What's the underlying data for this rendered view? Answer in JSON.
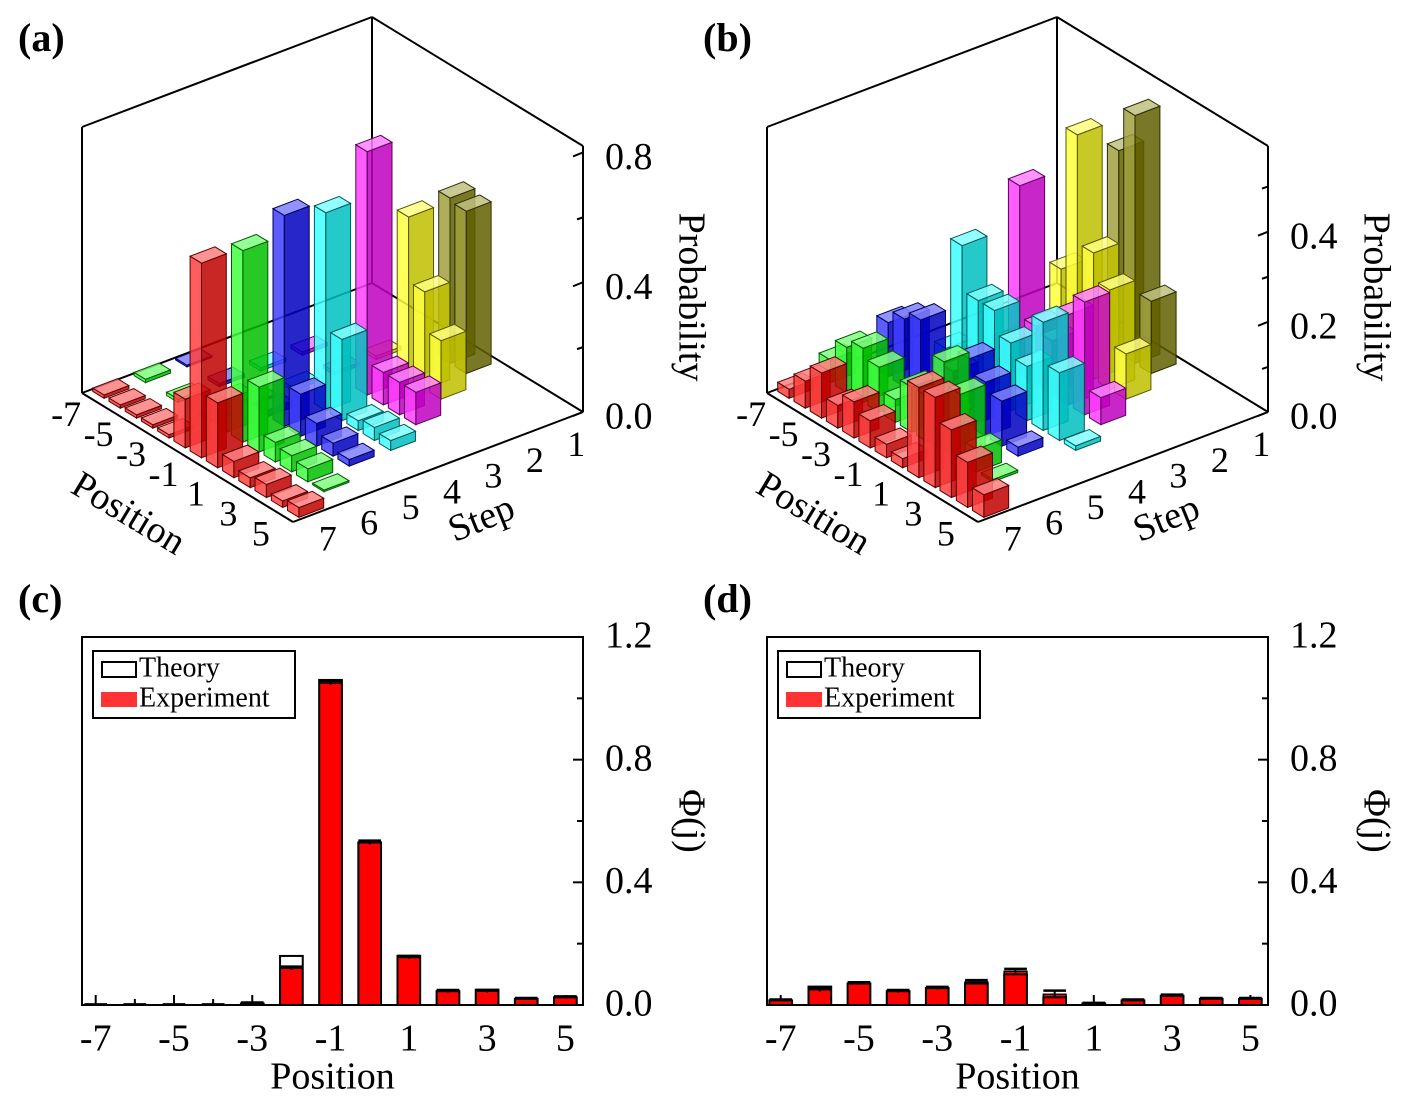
{
  "chart_data": [
    {
      "type": "bar3d",
      "panel_label": "(a)",
      "xlabel": "Position",
      "ylabel": "Step",
      "zlabel": "Probability",
      "xlim": [
        -7.5,
        5.5
      ],
      "xticks": [
        -7,
        -5,
        -3,
        -1,
        1,
        3,
        5
      ],
      "ylim": [
        0.5,
        7.5
      ],
      "yticks": [
        1,
        2,
        3,
        4,
        5,
        6,
        7
      ],
      "zlim": [
        0,
        0.82
      ],
      "zticks": [
        {
          "value": 0,
          "label": "0.0"
        },
        0.4,
        0.8
      ],
      "zminorticks": [
        0.2,
        0.6
      ],
      "x": [
        -7,
        -6,
        -5,
        -4,
        -3,
        -2,
        -1,
        0,
        1,
        2,
        3,
        4,
        5
      ],
      "steps": [
        1,
        2,
        3,
        4,
        5,
        6,
        7
      ],
      "series": [
        {
          "color": "#808000",
          "values": [
            null,
            null,
            null,
            null,
            null,
            null,
            0.51,
            0.5,
            null,
            null,
            null,
            null,
            null
          ]
        },
        {
          "color": "#ffff00",
          "values": [
            null,
            null,
            null,
            null,
            0.01,
            null,
            0.5,
            0.3,
            0.18,
            null,
            null,
            null,
            null
          ]
        },
        {
          "color": "#ff00ff",
          "values": [
            null,
            null,
            0.01,
            null,
            0.01,
            null,
            0.75,
            0.1,
            0.1,
            0.1,
            null,
            null,
            null
          ]
        },
        {
          "color": "#00ffff",
          "values": [
            null,
            null,
            0.01,
            null,
            0.01,
            null,
            0.61,
            0.25,
            0.03,
            0.04,
            0.03,
            null,
            null
          ]
        },
        {
          "color": "#0000ff",
          "values": [
            0.005,
            null,
            0.01,
            null,
            0.01,
            0.02,
            0.65,
            0.13,
            0.07,
            0.04,
            0.02,
            null,
            null
          ]
        },
        {
          "color": "#00ff00",
          "values": [
            0.01,
            null,
            0.01,
            null,
            0.01,
            0.1,
            0.59,
            0.2,
            0.06,
            0.05,
            0.04,
            0.005,
            null
          ]
        },
        {
          "color": "#ff0000",
          "values": [
            0.01,
            0.01,
            0.01,
            0.01,
            0.01,
            0.15,
            0.6,
            0.2,
            0.05,
            0.03,
            0.04,
            0.02,
            0.03
          ]
        }
      ]
    },
    {
      "type": "bar3d",
      "panel_label": "(b)",
      "xlabel": "Position",
      "ylabel": "Step",
      "zlabel": "Probability",
      "xlim": [
        -7.5,
        5.5
      ],
      "xticks": [
        -7,
        -5,
        -3,
        -1,
        1,
        3,
        5
      ],
      "ylim": [
        0.5,
        7.5
      ],
      "yticks": [
        1,
        2,
        3,
        4,
        5,
        6,
        7
      ],
      "zlim": [
        0,
        0.59
      ],
      "zticks": [
        {
          "value": 0,
          "label": "0.0"
        },
        0.2,
        0.4
      ],
      "zminorticks": [
        0.1,
        0.3,
        0.5
      ],
      "x": [
        -7,
        -6,
        -5,
        -4,
        -3,
        -2,
        -1,
        0,
        1,
        2,
        3,
        4,
        5
      ],
      "steps": [
        1,
        2,
        3,
        4,
        5,
        6,
        7
      ],
      "series": [
        {
          "color": "#808000",
          "values": [
            null,
            null,
            null,
            null,
            null,
            0.45,
            0.55,
            0.16,
            null,
            null,
            null,
            null,
            null
          ]
        },
        {
          "color": "#ffff00",
          "values": [
            null,
            null,
            null,
            0.05,
            0.2,
            0.52,
            0.28,
            0.22,
            0.1,
            null,
            null,
            null,
            null
          ]
        },
        {
          "color": "#ff00ff",
          "values": [
            null,
            null,
            null,
            0.05,
            0.42,
            0.13,
            0.12,
            0.2,
            0.25,
            0.06,
            null,
            null,
            null
          ]
        },
        {
          "color": "#00ffff",
          "values": [
            null,
            null,
            0.05,
            0.3,
            0.2,
            0.2,
            0.15,
            0.12,
            0.24,
            0.15,
            0.01,
            null,
            null
          ]
        },
        {
          "color": "#0000ff",
          "values": [
            null,
            0.12,
            0.15,
            0.17,
            0.05,
            0.1,
            0.15,
            0.12,
            0.1,
            0.02,
            null,
            null,
            null
          ]
        },
        {
          "color": "#00ff00",
          "values": [
            0.05,
            0.1,
            0.12,
            0.1,
            0.05,
            0.1,
            0.1,
            0.2,
            0.15,
            0.05,
            0.005,
            null,
            null
          ]
        },
        {
          "color": "#ff0000",
          "values": [
            0.02,
            0.06,
            0.1,
            0.05,
            0.08,
            0.06,
            0.03,
            0.02,
            0.2,
            0.2,
            0.15,
            0.1,
            0.05
          ]
        }
      ]
    },
    {
      "type": "bar",
      "panel_label": "(c)",
      "xlabel": "Position",
      "ylabel": "Φ(j)",
      "yaxis_side": "right",
      "legend": "upper left",
      "xlim": [
        -7.35,
        5.45
      ],
      "xticks": [
        -7,
        -5,
        -3,
        -1,
        1,
        3,
        5
      ],
      "xminorticks": [
        -6,
        -4,
        -2,
        0,
        2,
        4
      ],
      "ylim": [
        0,
        1.2
      ],
      "yticks": [
        {
          "value": 0,
          "label": "0.0"
        },
        0.4,
        0.8,
        1.2
      ],
      "yminorticks": [
        0.2,
        0.6,
        1.0
      ],
      "x": [
        -7,
        -6,
        -5,
        -4,
        -3,
        -2,
        -1,
        0,
        1,
        2,
        3,
        4,
        5
      ],
      "series": [
        {
          "name": "Theory",
          "style": "outline",
          "color": "#000000",
          "values": [
            0,
            0,
            0,
            0,
            0.005,
            0.16,
            1.06,
            0.53,
            0.16,
            0.045,
            0.05,
            0.02,
            0.025
          ]
        },
        {
          "name": "Experiment",
          "style": "filled",
          "color": "#ff0000",
          "values": [
            0,
            0,
            0,
            0,
            0.005,
            0.12,
            1.05,
            0.53,
            0.155,
            0.045,
            0.045,
            0.02,
            0.025
          ],
          "errors": [
            0.002,
            0.002,
            0.002,
            0.002,
            0.003,
            0.005,
            0.006,
            0.006,
            0.005,
            0.004,
            0.004,
            0.003,
            0.003
          ]
        }
      ]
    },
    {
      "type": "bar",
      "panel_label": "(d)",
      "xlabel": "Position",
      "ylabel": "Φ(j)",
      "yaxis_side": "right",
      "legend": "upper left",
      "xlim": [
        -7.35,
        5.45
      ],
      "xticks": [
        -7,
        -5,
        -3,
        -1,
        1,
        3,
        5
      ],
      "xminorticks": [
        -6,
        -4,
        -2,
        0,
        2,
        4
      ],
      "ylim": [
        0,
        1.2
      ],
      "yticks": [
        {
          "value": 0,
          "label": "0.0"
        },
        0.4,
        0.8,
        1.2
      ],
      "yminorticks": [
        0.2,
        0.6,
        1.0
      ],
      "x": [
        -7,
        -6,
        -5,
        -4,
        -3,
        -2,
        -1,
        0,
        1,
        2,
        3,
        4,
        5
      ],
      "series": [
        {
          "name": "Theory",
          "style": "outline",
          "color": "#000000",
          "values": [
            0.015,
            0.06,
            0.07,
            0.045,
            0.055,
            0.07,
            0.1,
            0.025,
            0.005,
            0.015,
            0.03,
            0.02,
            0.02
          ]
        },
        {
          "name": "Experiment",
          "style": "filled",
          "color": "#ff0000",
          "values": [
            0.015,
            0.05,
            0.07,
            0.045,
            0.055,
            0.075,
            0.11,
            0.035,
            0.005,
            0.015,
            0.03,
            0.02,
            0.02
          ],
          "errors": [
            0.003,
            0.006,
            0.004,
            0.004,
            0.004,
            0.006,
            0.008,
            0.012,
            0.002,
            0.003,
            0.004,
            0.003,
            0.003
          ]
        }
      ]
    }
  ]
}
